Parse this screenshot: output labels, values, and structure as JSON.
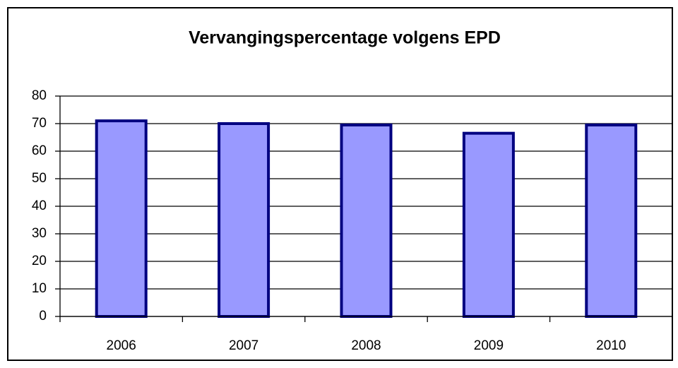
{
  "chart_data": {
    "type": "bar",
    "title": "Vervangingspercentage volgens EPD",
    "categories": [
      "2006",
      "2007",
      "2008",
      "2009",
      "2010"
    ],
    "values": [
      71,
      70,
      69.5,
      66.5,
      69.5
    ],
    "color": "#9999ff",
    "edge_color": "#000080",
    "ylim": [
      0,
      80
    ],
    "yticks": [
      0,
      10,
      20,
      30,
      40,
      50,
      60,
      70,
      80
    ],
    "grid": true
  }
}
